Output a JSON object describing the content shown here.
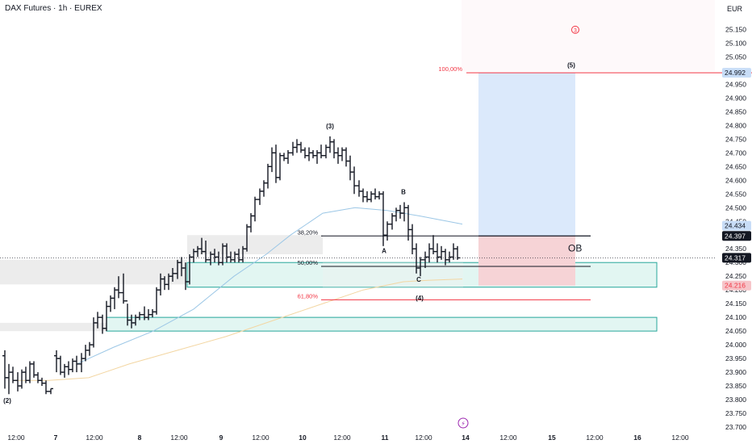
{
  "header": {
    "title": "DAX Futures · 1h · EUREX",
    "currency": "EUR"
  },
  "colors": {
    "up": "#131722",
    "down": "#131722",
    "target_fill": "#dbe9fb",
    "stop_fill": "#f6d3d6",
    "demand_zone": "#d8f3ee",
    "demand_border": "#26a69a",
    "grey_zone": "#e6e6e6",
    "fib_red": "#f23645",
    "ma_blue": "#9cc7e6",
    "ma_orange": "#f3d6a2",
    "price_tag": "#131722",
    "blue_tag": "#c8ddf7",
    "red_tag": "#f6c5c9"
  },
  "chart_data": {
    "type": "candlestick",
    "title": "DAX Futures · 1h · EUREX",
    "currency": "EUR",
    "ylim": [
      23700,
      25200
    ],
    "y_ticks": [
      "23.700",
      "23.750",
      "23.800",
      "23.850",
      "23.900",
      "23.950",
      "24.000",
      "24.050",
      "24.100",
      "24.150",
      "24.200",
      "24.250",
      "24.300",
      "24.350",
      "24.400",
      "24.450",
      "24.500",
      "24.550",
      "24.600",
      "24.650",
      "24.700",
      "24.750",
      "24.800",
      "24.850",
      "24.900",
      "24.950",
      "25.000",
      "25.050",
      "25.100",
      "25.150"
    ],
    "y_tick_values": [
      23700,
      23750,
      23800,
      23850,
      23900,
      23950,
      24000,
      24050,
      24100,
      24150,
      24200,
      24250,
      24300,
      24350,
      24400,
      24450,
      24500,
      24550,
      24600,
      24650,
      24700,
      24750,
      24800,
      24850,
      24900,
      24950,
      25000,
      25050,
      25100,
      25150
    ],
    "x_ticks": [
      "12:00",
      "7",
      "12:00",
      "8",
      "12:00",
      "9",
      "12:00",
      "10",
      "12:00",
      "11",
      "12:00",
      "14",
      "12:00",
      "15",
      "12:00",
      "16",
      "12:00"
    ],
    "x_tick_values": [
      20,
      69,
      117,
      173,
      222,
      274,
      323,
      375,
      424,
      477,
      525,
      577,
      630,
      684,
      737,
      790,
      843
    ],
    "grid": false,
    "bars": [
      [
        6,
        23960,
        23980,
        23840,
        23880
      ],
      [
        11,
        23880,
        23930,
        23820,
        23900
      ],
      [
        16,
        23900,
        23920,
        23860,
        23870
      ],
      [
        22,
        23870,
        23900,
        23830,
        23850
      ],
      [
        27,
        23850,
        23910,
        23840,
        23900
      ],
      [
        32,
        23900,
        23920,
        23860,
        23870
      ],
      [
        37,
        23870,
        23940,
        23860,
        23930
      ],
      [
        42,
        23930,
        23940,
        23880,
        23890
      ],
      [
        47,
        23890,
        23900,
        23860,
        23870
      ],
      [
        52,
        23870,
        23880,
        23850,
        23860
      ],
      [
        57,
        23860,
        23870,
        23820,
        23830
      ],
      [
        63,
        23830,
        23840,
        23820,
        23840
      ],
      [
        70,
        23960,
        23980,
        23900,
        23950
      ],
      [
        75,
        23950,
        23960,
        23890,
        23900
      ],
      [
        80,
        23900,
        23930,
        23880,
        23920
      ],
      [
        85,
        23920,
        23940,
        23890,
        23910
      ],
      [
        90,
        23910,
        23950,
        23900,
        23940
      ],
      [
        95,
        23940,
        23960,
        23900,
        23930
      ],
      [
        101,
        23930,
        23970,
        23900,
        23950
      ],
      [
        106,
        23950,
        24000,
        23940,
        23980
      ],
      [
        111,
        23980,
        24010,
        23960,
        24000
      ],
      [
        116,
        24000,
        24100,
        23990,
        24080
      ],
      [
        121,
        24080,
        24120,
        24060,
        24100
      ],
      [
        127,
        24100,
        24110,
        24040,
        24060
      ],
      [
        132,
        24060,
        24160,
        24050,
        24140
      ],
      [
        137,
        24140,
        24180,
        24120,
        24170
      ],
      [
        142,
        24170,
        24210,
        24130,
        24200
      ],
      [
        147,
        24200,
        24250,
        24170,
        24190
      ],
      [
        153,
        24190,
        24260,
        24150,
        24160
      ],
      [
        158,
        24160,
        24150,
        24070,
        24090
      ],
      [
        163,
        24090,
        24110,
        24060,
        24080
      ],
      [
        168,
        24080,
        24110,
        24070,
        24100
      ],
      [
        173,
        24100,
        24120,
        24090,
        24110
      ],
      [
        179,
        24110,
        24140,
        24090,
        24100
      ],
      [
        184,
        24100,
        24130,
        24090,
        24110
      ],
      [
        189,
        24110,
        24130,
        24100,
        24120
      ],
      [
        194,
        24120,
        24210,
        24110,
        24200
      ],
      [
        199,
        24200,
        24260,
        24180,
        24240
      ],
      [
        204,
        24240,
        24250,
        24200,
        24220
      ],
      [
        209,
        24220,
        24260,
        24200,
        24250
      ],
      [
        214,
        24250,
        24280,
        24230,
        24260
      ],
      [
        220,
        24260,
        24310,
        24240,
        24300
      ],
      [
        225,
        24300,
        24320,
        24250,
        24280
      ],
      [
        230,
        24280,
        24300,
        24200,
        24230
      ],
      [
        235,
        24230,
        24330,
        24220,
        24320
      ],
      [
        240,
        24320,
        24350,
        24300,
        24340
      ],
      [
        245,
        24340,
        24360,
        24320,
        24350
      ],
      [
        250,
        24350,
        24390,
        24330,
        24340
      ],
      [
        255,
        24340,
        24380,
        24300,
        24310
      ],
      [
        261,
        24310,
        24340,
        24290,
        24330
      ],
      [
        266,
        24330,
        24350,
        24300,
        24320
      ],
      [
        271,
        24320,
        24340,
        24290,
        24300
      ],
      [
        276,
        24300,
        24370,
        24290,
        24360
      ],
      [
        281,
        24360,
        24370,
        24300,
        24320
      ],
      [
        286,
        24320,
        24340,
        24300,
        24310
      ],
      [
        291,
        24310,
        24340,
        24300,
        24330
      ],
      [
        296,
        24330,
        24350,
        24300,
        24310
      ],
      [
        301,
        24310,
        24360,
        24300,
        24350
      ],
      [
        306,
        24350,
        24440,
        24340,
        24430
      ],
      [
        311,
        24430,
        24480,
        24410,
        24470
      ],
      [
        316,
        24470,
        24540,
        24450,
        24530
      ],
      [
        322,
        24530,
        24570,
        24510,
        24560
      ],
      [
        327,
        24560,
        24600,
        24540,
        24590
      ],
      [
        332,
        24590,
        24660,
        24570,
        24650
      ],
      [
        337,
        24650,
        24720,
        24630,
        24700
      ],
      [
        342,
        24700,
        24730,
        24590,
        24610
      ],
      [
        347,
        24610,
        24700,
        24600,
        24690
      ],
      [
        352,
        24690,
        24700,
        24670,
        24680
      ],
      [
        357,
        24680,
        24710,
        24660,
        24700
      ],
      [
        363,
        24700,
        24740,
        24690,
        24720
      ],
      [
        368,
        24720,
        24750,
        24700,
        24730
      ],
      [
        373,
        24730,
        24740,
        24700,
        24710
      ],
      [
        378,
        24710,
        24720,
        24680,
        24690
      ],
      [
        383,
        24690,
        24720,
        24670,
        24700
      ],
      [
        388,
        24700,
        24710,
        24680,
        24690
      ],
      [
        393,
        24690,
        24710,
        24660,
        24700
      ],
      [
        398,
        24700,
        24730,
        24680,
        24690
      ],
      [
        404,
        24690,
        24730,
        24680,
        24720
      ],
      [
        409,
        24720,
        24760,
        24700,
        24740
      ],
      [
        414,
        24740,
        24750,
        24680,
        24700
      ],
      [
        419,
        24700,
        24720,
        24660,
        24690
      ],
      [
        424,
        24690,
        24720,
        24670,
        24710
      ],
      [
        429,
        24710,
        24720,
        24650,
        24670
      ],
      [
        434,
        24670,
        24690,
        24600,
        24630
      ],
      [
        439,
        24630,
        24650,
        24550,
        24580
      ],
      [
        445,
        24580,
        24600,
        24540,
        24560
      ],
      [
        450,
        24560,
        24570,
        24520,
        24540
      ],
      [
        455,
        24540,
        24560,
        24520,
        24530
      ],
      [
        460,
        24530,
        24560,
        24520,
        24550
      ],
      [
        465,
        24550,
        24570,
        24530,
        24540
      ],
      [
        470,
        24540,
        24560,
        24530,
        24550
      ],
      [
        475,
        24550,
        24560,
        24360,
        24400
      ],
      [
        480,
        24400,
        24450,
        24380,
        24440
      ],
      [
        486,
        24440,
        24480,
        24420,
        24470
      ],
      [
        491,
        24470,
        24500,
        24450,
        24490
      ],
      [
        496,
        24490,
        24510,
        24460,
        24480
      ],
      [
        501,
        24480,
        24520,
        24450,
        24500
      ],
      [
        506,
        24500,
        24510,
        24380,
        24420
      ],
      [
        511,
        24420,
        24440,
        24330,
        24350
      ],
      [
        516,
        24350,
        24370,
        24260,
        24280
      ],
      [
        521,
        24280,
        24320,
        24250,
        24310
      ],
      [
        527,
        24310,
        24340,
        24280,
        24320
      ],
      [
        532,
        24320,
        24370,
        24300,
        24350
      ],
      [
        537,
        24350,
        24400,
        24330,
        24340
      ],
      [
        542,
        24340,
        24370,
        24300,
        24320
      ],
      [
        547,
        24320,
        24360,
        24310,
        24340
      ],
      [
        552,
        24340,
        24350,
        24290,
        24310
      ],
      [
        557,
        24310,
        24340,
        24300,
        24320
      ],
      [
        562,
        24320,
        24370,
        24310,
        24350
      ],
      [
        567,
        24350,
        24360,
        24310,
        24317
      ]
    ],
    "moving_averages": [
      {
        "color": "#9cc7e6",
        "points": [
          [
            95,
            23930
          ],
          [
            140,
            23990
          ],
          [
            190,
            24050
          ],
          [
            240,
            24130
          ],
          [
            290,
            24250
          ],
          [
            330,
            24330
          ],
          [
            360,
            24400
          ],
          [
            400,
            24480
          ],
          [
            440,
            24500
          ],
          [
            480,
            24490
          ],
          [
            520,
            24470
          ],
          [
            573,
            24440
          ]
        ]
      },
      {
        "color": "#f3d6a2",
        "points": [
          [
            20,
            23870
          ],
          [
            60,
            23870
          ],
          [
            110,
            23880
          ],
          [
            160,
            23930
          ],
          [
            220,
            23980
          ],
          [
            280,
            24030
          ],
          [
            340,
            24090
          ],
          [
            400,
            24150
          ],
          [
            450,
            24200
          ],
          [
            500,
            24230
          ],
          [
            530,
            24235
          ],
          [
            573,
            24240
          ]
        ]
      }
    ],
    "zones": [
      {
        "type": "grey",
        "y": [
          24220,
          24310
        ],
        "x": [
          0,
          232
        ]
      },
      {
        "type": "grey",
        "y": [
          24050,
          24080
        ],
        "x": [
          0,
          132
        ]
      },
      {
        "type": "grey",
        "y": [
          24330,
          24400
        ],
        "x": [
          232,
          400
        ]
      },
      {
        "type": "demand",
        "y": [
          24210,
          24300
        ],
        "x": [
          232,
          814
        ]
      },
      {
        "type": "demand",
        "y": [
          24050,
          24100
        ],
        "x": [
          132,
          814
        ]
      },
      {
        "type": "grey-faint",
        "y": [
          24210,
          24300
        ],
        "x": [
          400,
          574
        ]
      }
    ],
    "position": {
      "target_top": 24992,
      "entry": 24397,
      "stop": 24216,
      "x": [
        593,
        713
      ],
      "entry_line": 24397,
      "ob_level": 24352,
      "ob_label": "OB"
    },
    "fib_levels": [
      {
        "label": "100,00%",
        "value": 24992,
        "color": "#f23645",
        "x": [
          578,
          932
        ]
      },
      {
        "label": "38,20%",
        "value": 24397,
        "color": "#131722",
        "x": [
          398,
          732
        ]
      },
      {
        "label": "50,00%",
        "value": 24286,
        "color": "#131722",
        "x": [
          398,
          732
        ]
      },
      {
        "label": "61,80%",
        "value": 24164,
        "color": "#f23645",
        "x": [
          398,
          732
        ]
      }
    ],
    "wave_labels": [
      {
        "label": "(2)",
        "x": 9,
        "y": 23788
      },
      {
        "label": "(3)",
        "x": 409,
        "y": 24790
      },
      {
        "label": "A",
        "x": 476,
        "y": 24335
      },
      {
        "label": "B",
        "x": 500,
        "y": 24550
      },
      {
        "label": "C",
        "x": 519,
        "y": 24230
      },
      {
        "label": "(4)",
        "x": 520,
        "y": 24162
      },
      {
        "label": "(5)",
        "x": 708,
        "y": 25012
      },
      {
        "label": "3",
        "x": 713,
        "y": 25140
      }
    ],
    "price_tags": [
      {
        "label": "24.992",
        "value": 24992,
        "bg": "#c8ddf7",
        "fg": "#131722"
      },
      {
        "label": "24.434",
        "value": 24434,
        "bg": "#c8ddf7",
        "fg": "#131722"
      },
      {
        "label": "24.397",
        "value": 24397,
        "bg": "#131722",
        "fg": "#ffffff"
      },
      {
        "label": "24.317",
        "value": 24317,
        "bg": "#131722",
        "fg": "#ffffff"
      },
      {
        "label": "24.216",
        "value": 24216,
        "bg": "#f6c5c9",
        "fg": "#f23645"
      }
    ],
    "last_price": 24317,
    "event_marker": {
      "label": "⚡",
      "x": 574
    }
  }
}
